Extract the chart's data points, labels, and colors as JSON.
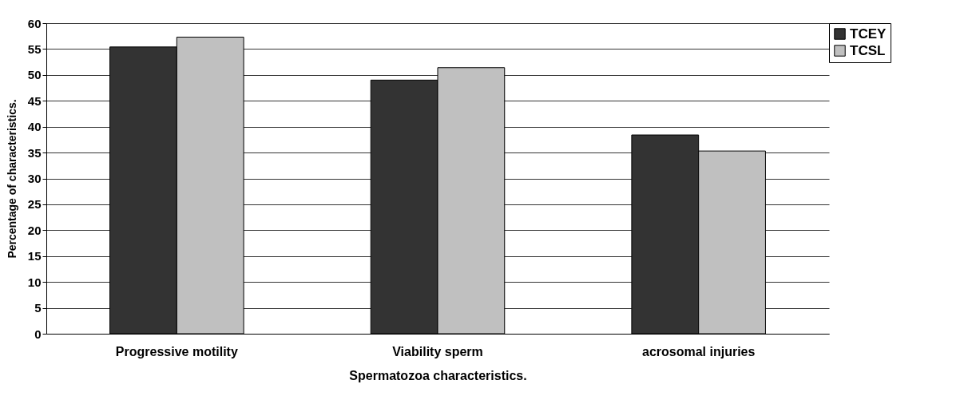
{
  "chart_data": {
    "type": "bar",
    "xlabel": "Spermatozoa characteristics.",
    "ylabel": "Percentage of characteristics.",
    "categories": [
      "Progressive motility",
      "Viability sperm",
      "acrosomal injuries"
    ],
    "series": [
      {
        "name": "TCEY",
        "color": "#333333",
        "values": [
          55.4,
          49.0,
          38.4
        ]
      },
      {
        "name": "TCSL",
        "color": "#c0c0c0",
        "values": [
          57.3,
          51.4,
          35.3
        ]
      }
    ],
    "ylim": [
      0,
      60
    ],
    "yticks": [
      0,
      5,
      10,
      15,
      20,
      25,
      30,
      35,
      40,
      45,
      50,
      55,
      60
    ],
    "grid": "y",
    "legend": "right"
  }
}
